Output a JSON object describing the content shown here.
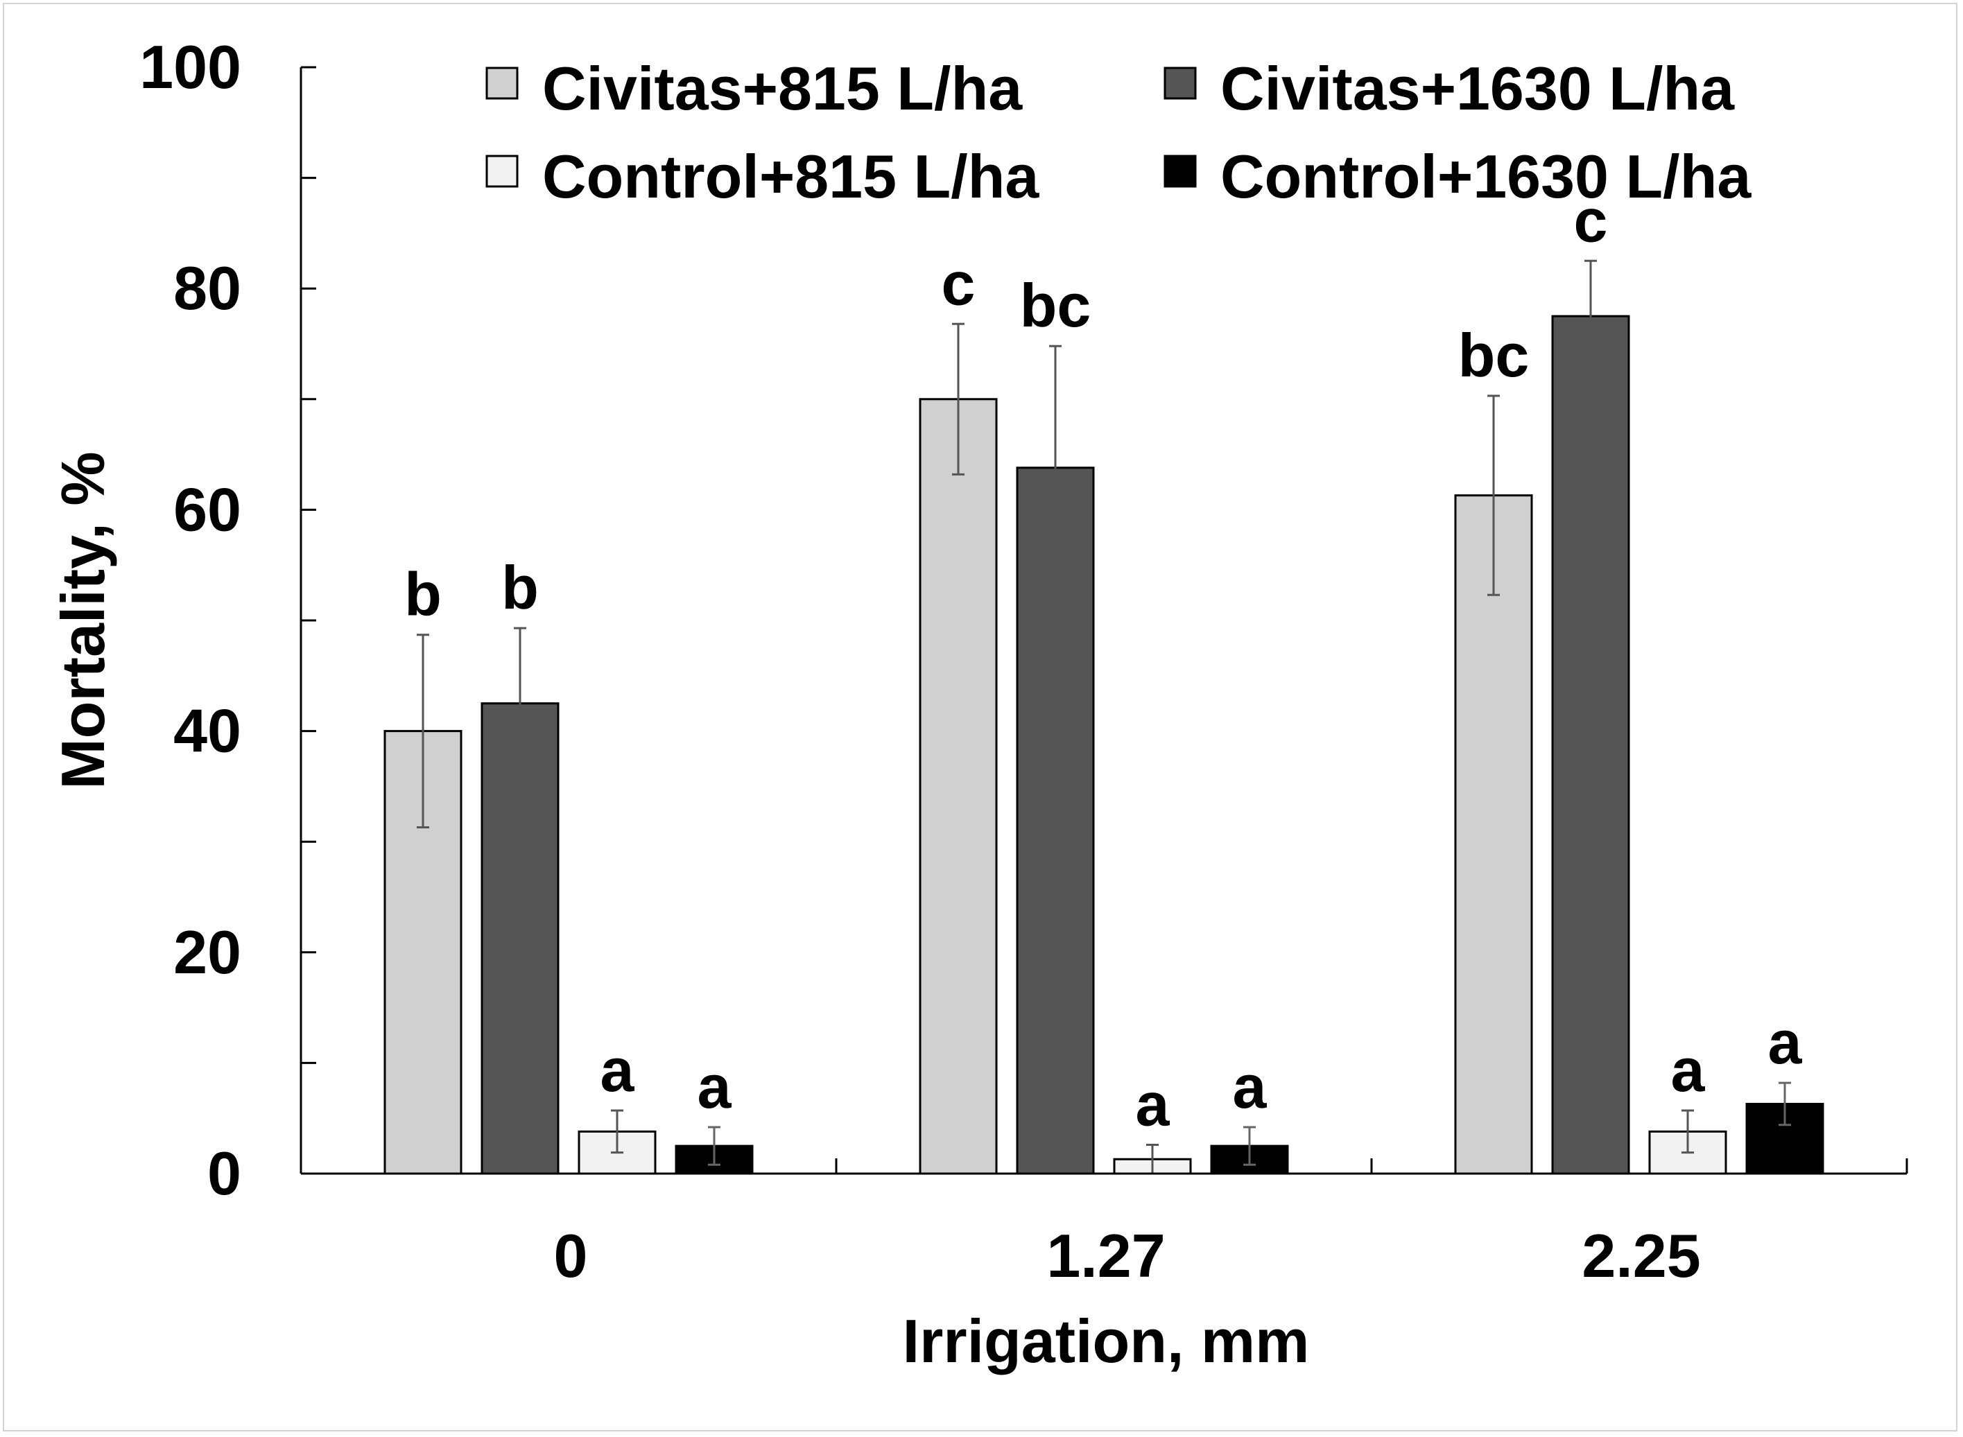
{
  "chart_data": {
    "type": "bar",
    "title": "",
    "xlabel": "Irrigation, mm",
    "ylabel": "Mortality, %",
    "ylim": [
      0,
      100
    ],
    "y_major_ticks": [
      0,
      20,
      40,
      60,
      80,
      100
    ],
    "y_minor_ticks": [
      10,
      30,
      50,
      70,
      90
    ],
    "y_tick_labels": [
      "0",
      "20",
      "40",
      "60",
      "80",
      "100"
    ],
    "categories": [
      "0",
      "1.27",
      "2.25"
    ],
    "legend_position": "top",
    "series": [
      {
        "name": "Civitas+815 L/ha",
        "color": "#d0d0d0",
        "values": [
          40.0,
          70.0,
          61.3
        ],
        "errors": [
          8.7,
          6.8,
          9.0
        ],
        "letters": [
          "b",
          "c",
          "bc"
        ]
      },
      {
        "name": "Civitas+1630 L/ha",
        "color": "#555555",
        "values": [
          42.5,
          63.8,
          77.5
        ],
        "errors": [
          6.8,
          11.0,
          5.0
        ],
        "letters": [
          "b",
          "bc",
          "c"
        ]
      },
      {
        "name": "Control+815 L/ha",
        "color": "#f2f2f2",
        "values": [
          3.8,
          1.3,
          3.8
        ],
        "errors": [
          1.9,
          1.3,
          1.9
        ],
        "letters": [
          "a",
          "a",
          "a"
        ]
      },
      {
        "name": "Control+1630 L/ha",
        "color": "#000000",
        "values": [
          2.5,
          2.5,
          6.3
        ],
        "errors": [
          1.7,
          1.7,
          1.9
        ],
        "letters": [
          "a",
          "a",
          "a"
        ]
      }
    ]
  }
}
